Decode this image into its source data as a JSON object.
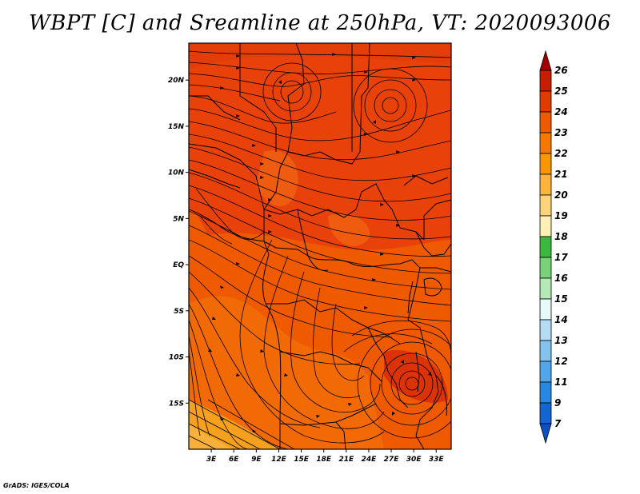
{
  "title": "WBPT [C] and Sreamline at 250hPa, VT: 2020093006",
  "credit": "GrADS: IGES/COLA",
  "map": {
    "lat_labels": [
      "20N",
      "15N",
      "10N",
      "5N",
      "EQ",
      "5S",
      "10S",
      "15S"
    ],
    "lon_labels": [
      "3E",
      "6E",
      "9E",
      "12E",
      "15E",
      "18E",
      "21E",
      "24E",
      "27E",
      "30E",
      "33E"
    ],
    "lon_range": [
      0,
      35
    ],
    "lat_range": [
      -20,
      24
    ]
  },
  "colorbar": {
    "labels": [
      "26",
      "25",
      "24",
      "23",
      "22",
      "21",
      "20",
      "19",
      "18",
      "17",
      "16",
      "15",
      "14",
      "13",
      "12",
      "11",
      "9",
      "7"
    ],
    "colors": [
      "#a00000",
      "#c81e00",
      "#e13c00",
      "#ee5a00",
      "#f57800",
      "#fa9600",
      "#fbb43c",
      "#fcd27a",
      "#fdf0b4",
      "#3cb93c",
      "#78d278",
      "#b4ebb4",
      "#e6fafa",
      "#b4dcf5",
      "#82c3f0",
      "#50a5eb",
      "#2887e1",
      "#1464d2",
      "#0a50c3"
    ]
  },
  "legend_colors": {
    "field_dark": "#e03c0a",
    "field_mid": "#ef5a00",
    "field_light": "#f57a10",
    "field_warm": "#f6a01e"
  }
}
